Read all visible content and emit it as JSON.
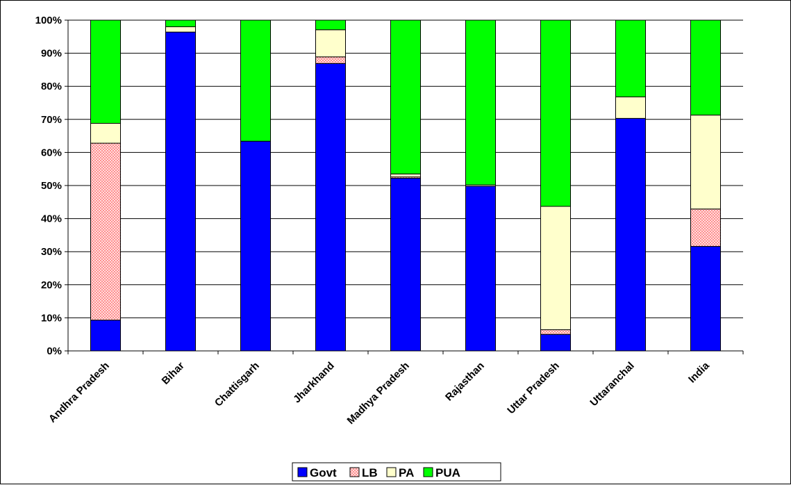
{
  "chart_data": {
    "type": "bar",
    "stacked": "percent",
    "title": "",
    "xlabel": "",
    "ylabel": "",
    "ylim": [
      0,
      100
    ],
    "y_ticks": [
      "0%",
      "10%",
      "20%",
      "30%",
      "40%",
      "50%",
      "60%",
      "70%",
      "80%",
      "90%",
      "100%"
    ],
    "grid": "horizontal",
    "legend_position": "bottom",
    "categories": [
      "Andhra Pradesh",
      "Bihar",
      "Chattisgarh",
      "Jharkhand",
      "Madhya Pradesh",
      "Rajasthan",
      "Uttar Pradesh",
      "Uttaranchal",
      "India"
    ],
    "series": [
      {
        "name": "Govt",
        "color": "#0000FF",
        "pattern": "solid",
        "values": [
          9.3,
          96.4,
          63.4,
          86.9,
          52.2,
          49.8,
          5.0,
          70.3,
          31.6
        ]
      },
      {
        "name": "LB",
        "color": "#FF8080",
        "pattern": "crosshatch",
        "values": [
          53.5,
          0.0,
          0.0,
          2.0,
          0.4,
          0.0,
          1.4,
          0.0,
          11.3
        ]
      },
      {
        "name": "PA",
        "color": "#FFFFCC",
        "pattern": "solid",
        "values": [
          6.0,
          1.6,
          0.0,
          8.2,
          0.9,
          0.4,
          37.3,
          6.5,
          28.4
        ]
      },
      {
        "name": "PUA",
        "color": "#00FF00",
        "pattern": "solid",
        "values": [
          31.2,
          2.0,
          36.6,
          2.9,
          46.5,
          49.8,
          56.3,
          23.2,
          28.7
        ]
      }
    ]
  }
}
